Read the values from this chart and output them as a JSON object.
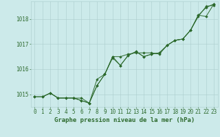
{
  "background_color": "#cceaea",
  "grid_color": "#aacccc",
  "line_color": "#2d6a2d",
  "marker_color": "#2d6a2d",
  "title": "Graphe pression niveau de la mer (hPa)",
  "title_fontsize": 6.5,
  "tick_fontsize": 5.5,
  "xlim": [
    -0.5,
    23.5
  ],
  "ylim": [
    1014.5,
    1018.7
  ],
  "yticks": [
    1015,
    1016,
    1017,
    1018
  ],
  "xticks": [
    0,
    1,
    2,
    3,
    4,
    5,
    6,
    7,
    8,
    9,
    10,
    11,
    12,
    13,
    14,
    15,
    16,
    17,
    18,
    19,
    20,
    21,
    22,
    23
  ],
  "series1_x": [
    0,
    1,
    2,
    3,
    4,
    5,
    6,
    7,
    8,
    9,
    10,
    11,
    12,
    13,
    14,
    15,
    16,
    17,
    18,
    19,
    20,
    21,
    22,
    23
  ],
  "series1_y": [
    1014.9,
    1014.9,
    1015.05,
    1014.85,
    1014.85,
    1014.85,
    1014.85,
    1014.65,
    1015.35,
    1015.8,
    1016.5,
    1016.5,
    1016.6,
    1016.65,
    1016.65,
    1016.65,
    1016.6,
    1016.95,
    1017.15,
    1017.2,
    1017.55,
    1018.1,
    1018.5,
    1018.55
  ],
  "series2_x": [
    0,
    1,
    2,
    3,
    4,
    5,
    6,
    7,
    8,
    9,
    10,
    11,
    12,
    13,
    14,
    15,
    16,
    17,
    18,
    19,
    20,
    21,
    22,
    23
  ],
  "series2_y": [
    1014.9,
    1014.9,
    1015.05,
    1014.85,
    1014.85,
    1014.85,
    1014.75,
    1014.65,
    1015.35,
    1015.8,
    1016.5,
    1016.15,
    1016.55,
    1016.7,
    1016.5,
    1016.6,
    1016.65,
    1016.95,
    1017.15,
    1017.2,
    1017.55,
    1018.15,
    1018.45,
    1018.6
  ],
  "series3_x": [
    0,
    1,
    2,
    3,
    4,
    5,
    6,
    7,
    8,
    9,
    10,
    11,
    12,
    13,
    14,
    15,
    16,
    17,
    18,
    19,
    20,
    21,
    22,
    23
  ],
  "series3_y": [
    1014.9,
    1014.9,
    1015.05,
    1014.85,
    1014.85,
    1014.85,
    1014.75,
    1014.65,
    1015.6,
    1015.8,
    1016.45,
    1016.15,
    1016.55,
    1016.7,
    1016.5,
    1016.6,
    1016.65,
    1016.95,
    1017.15,
    1017.2,
    1017.55,
    1018.15,
    1018.1,
    1018.6
  ]
}
